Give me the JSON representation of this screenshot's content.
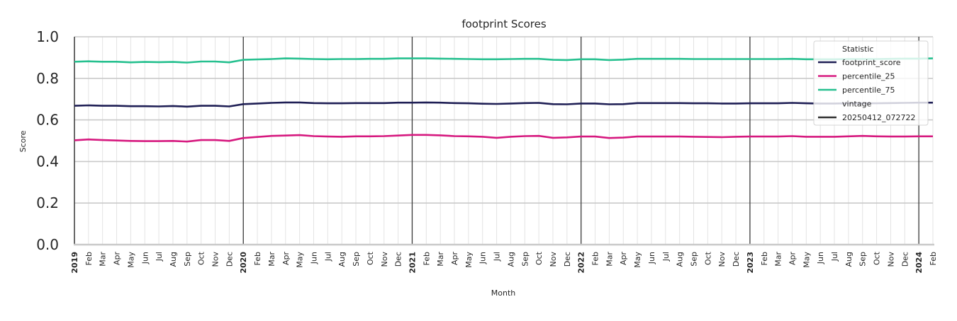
{
  "chart_data": {
    "type": "line",
    "title": "footprint Scores",
    "xlabel": "Month",
    "ylabel": "Score",
    "ylim": [
      0.0,
      1.0
    ],
    "yticks": [
      "0.0",
      "0.2",
      "0.4",
      "0.6",
      "0.8",
      "1.0"
    ],
    "grid": true,
    "legend": {
      "position": "upper right",
      "title": "Statistic",
      "entries": [
        {
          "label": "footprint_score",
          "color": "#1f1f55",
          "kind": "line"
        },
        {
          "label": "percentile_25",
          "color": "#d6197f",
          "kind": "line"
        },
        {
          "label": "percentile_75",
          "color": "#26c08f",
          "kind": "line"
        },
        {
          "label": "vintage",
          "kind": "header"
        },
        {
          "label": "20250412_072722",
          "color": "#2f2f2f",
          "kind": "line"
        }
      ]
    },
    "x": [
      "2019",
      "Feb",
      "Mar",
      "Apr",
      "May",
      "Jun",
      "Jul",
      "Aug",
      "Sep",
      "Oct",
      "Nov",
      "Dec",
      "2020",
      "Feb",
      "Mar",
      "Apr",
      "May",
      "Jun",
      "Jul",
      "Aug",
      "Sep",
      "Oct",
      "Nov",
      "Dec",
      "2021",
      "Feb",
      "Mar",
      "Apr",
      "May",
      "Jun",
      "Jul",
      "Aug",
      "Sep",
      "Oct",
      "Nov",
      "Dec",
      "2022",
      "Feb",
      "Mar",
      "Apr",
      "May",
      "Jun",
      "Jul",
      "Aug",
      "Sep",
      "Oct",
      "Nov",
      "Dec",
      "2023",
      "Feb",
      "Mar",
      "Apr",
      "May",
      "Jun",
      "Jul",
      "Aug",
      "Sep",
      "Oct",
      "Nov",
      "Dec",
      "2024",
      "Feb"
    ],
    "year_ticks": [
      "2019",
      "2020",
      "2021",
      "2022",
      "2023",
      "2024"
    ],
    "series": [
      {
        "name": "percentile_75",
        "color": "#26c08f",
        "values": [
          0.88,
          0.882,
          0.88,
          0.88,
          0.877,
          0.879,
          0.878,
          0.879,
          0.876,
          0.881,
          0.881,
          0.877,
          0.889,
          0.891,
          0.893,
          0.896,
          0.895,
          0.893,
          0.892,
          0.893,
          0.893,
          0.894,
          0.894,
          0.896,
          0.896,
          0.896,
          0.895,
          0.894,
          0.893,
          0.892,
          0.892,
          0.893,
          0.894,
          0.894,
          0.889,
          0.888,
          0.892,
          0.892,
          0.888,
          0.89,
          0.894,
          0.894,
          0.894,
          0.894,
          0.893,
          0.893,
          0.893,
          0.893,
          0.893,
          0.893,
          0.893,
          0.894,
          0.892,
          0.892,
          0.892,
          0.893,
          0.893,
          0.893,
          0.894,
          0.895,
          0.895,
          0.896
        ]
      },
      {
        "name": "footprint_score",
        "color": "#1f1f55",
        "values": [
          0.668,
          0.67,
          0.668,
          0.668,
          0.666,
          0.666,
          0.665,
          0.667,
          0.664,
          0.668,
          0.668,
          0.665,
          0.676,
          0.679,
          0.682,
          0.684,
          0.684,
          0.681,
          0.68,
          0.68,
          0.681,
          0.681,
          0.681,
          0.683,
          0.683,
          0.684,
          0.683,
          0.681,
          0.68,
          0.678,
          0.677,
          0.679,
          0.681,
          0.682,
          0.676,
          0.675,
          0.679,
          0.679,
          0.675,
          0.676,
          0.681,
          0.681,
          0.681,
          0.681,
          0.68,
          0.68,
          0.679,
          0.679,
          0.68,
          0.68,
          0.68,
          0.682,
          0.68,
          0.679,
          0.679,
          0.68,
          0.68,
          0.68,
          0.681,
          0.682,
          0.683,
          0.683
        ]
      },
      {
        "name": "percentile_25",
        "color": "#d6197f",
        "values": [
          0.502,
          0.506,
          0.503,
          0.501,
          0.499,
          0.498,
          0.498,
          0.499,
          0.496,
          0.503,
          0.503,
          0.499,
          0.513,
          0.518,
          0.523,
          0.525,
          0.527,
          0.522,
          0.52,
          0.519,
          0.521,
          0.521,
          0.522,
          0.525,
          0.528,
          0.528,
          0.526,
          0.522,
          0.521,
          0.519,
          0.514,
          0.519,
          0.522,
          0.523,
          0.514,
          0.516,
          0.52,
          0.52,
          0.513,
          0.515,
          0.52,
          0.52,
          0.52,
          0.52,
          0.519,
          0.518,
          0.517,
          0.519,
          0.52,
          0.52,
          0.52,
          0.522,
          0.519,
          0.519,
          0.519,
          0.521,
          0.523,
          0.521,
          0.52,
          0.52,
          0.521,
          0.521
        ]
      }
    ],
    "vintage_lines": [
      "2019",
      "2020",
      "2021",
      "2022",
      "2023",
      "2024"
    ]
  }
}
